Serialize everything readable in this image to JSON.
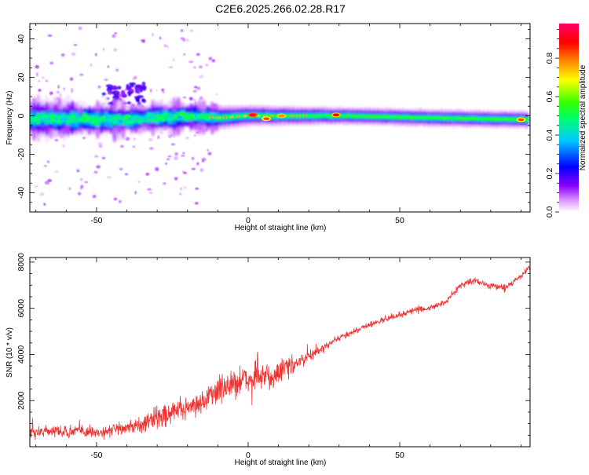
{
  "title": "C2E6.2025.266.02.28.R17",
  "colors": {
    "snr_line": "#ee3333",
    "spectrum_core": "#ff0040",
    "spectrum_outer": "#aa00ff"
  },
  "chart_data": [
    {
      "type": "heatmap",
      "title": "C2E6.2025.266.02.28.R17",
      "xlabel": "Height of straight line (km)",
      "ylabel": "Frequency (Hz)",
      "xlim": [
        -72,
        93
      ],
      "ylim": [
        -50,
        48
      ],
      "x_ticks": [
        -50,
        0,
        50
      ],
      "y_ticks": [
        -40,
        -20,
        0,
        20,
        40
      ],
      "colorbar": {
        "label": "Normalized spectral amplitude",
        "range": [
          0.0,
          0.98
        ],
        "ticks": [
          "0.0",
          "0.2",
          "0.4",
          "0.6",
          "0.8"
        ],
        "colormap": [
          "#ffffff",
          "#dd99ff",
          "#8800ff",
          "#0000ff",
          "#00ccff",
          "#00ff66",
          "#33ff00",
          "#ffff00",
          "#ff8800",
          "#ff0000",
          "#ff0066"
        ]
      },
      "band": {
        "center_hz": [
          [
            -72,
            -1.5
          ],
          [
            -40,
            -2
          ],
          [
            -20,
            0
          ],
          [
            -10,
            -1
          ],
          [
            0,
            0
          ],
          [
            30,
            0
          ],
          [
            60,
            -1
          ],
          [
            93,
            -2
          ]
        ],
        "halfwidth_hz": [
          [
            -72,
            5
          ],
          [
            -20,
            4
          ],
          [
            0,
            3
          ],
          [
            30,
            2.5
          ],
          [
            93,
            2.5
          ]
        ],
        "peaks": [
          {
            "x": 1.5,
            "y": 0.5,
            "amp": 0.98
          },
          {
            "x": 29,
            "y": 0.5,
            "amp": 0.9
          },
          {
            "x": 90,
            "y": -2,
            "amp": 0.85
          },
          {
            "x": 6,
            "y": -1.5,
            "amp": 0.85
          },
          {
            "x": 11,
            "y": 0,
            "amp": 0.8
          }
        ]
      }
    },
    {
      "type": "line",
      "xlabel": "Height of straight line (km)",
      "ylabel": "SNR (10 * v/v)",
      "xlim": [
        -72,
        93
      ],
      "ylim": [
        0,
        8200
      ],
      "x_ticks": [
        -50,
        0,
        50
      ],
      "y_ticks": [
        2000,
        4000,
        6000,
        8000
      ],
      "series": [
        {
          "name": "SNR",
          "x": [
            -72,
            -65,
            -60,
            -55,
            -50,
            -45,
            -40,
            -35,
            -30,
            -25,
            -20,
            -15,
            -12,
            -10,
            -5,
            0,
            5,
            10,
            13,
            15,
            20,
            25,
            30,
            35,
            40,
            45,
            50,
            55,
            60,
            65,
            70,
            75,
            80,
            85,
            90,
            93
          ],
          "values": [
            600,
            700,
            650,
            700,
            600,
            750,
            800,
            1000,
            1300,
            1500,
            1700,
            2000,
            2200,
            2500,
            2700,
            2900,
            3000,
            3200,
            3400,
            3600,
            3900,
            4300,
            4700,
            5000,
            5300,
            5500,
            5700,
            5950,
            6000,
            6250,
            7000,
            7200,
            6950,
            6900,
            7400,
            7800
          ]
        }
      ]
    }
  ]
}
